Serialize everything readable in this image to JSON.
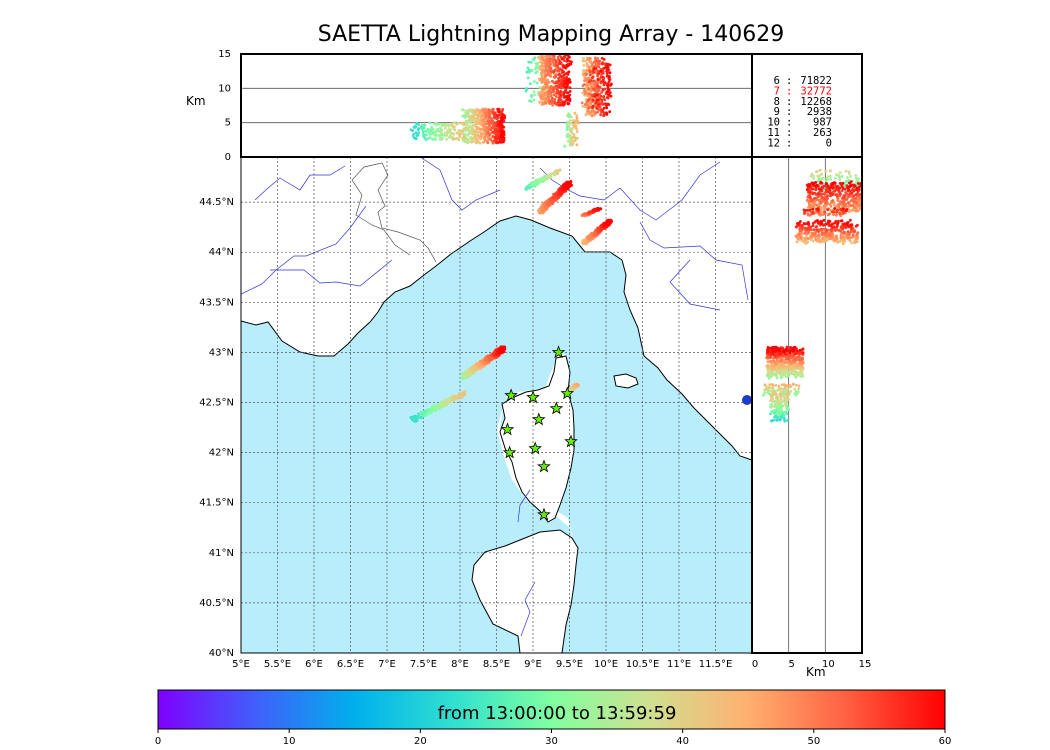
{
  "title": "SAETTA Lightning Mapping Array - 140629",
  "km_label": "Km",
  "plan_view": {
    "lon_ticks": [
      "5°E",
      "5.5°E",
      "6°E",
      "6.5°E",
      "7°E",
      "7.5°E",
      "8°E",
      "8.5°E",
      "9°E",
      "9.5°E",
      "10°E",
      "10.5°E",
      "11°E",
      "11.5°E"
    ],
    "lat_ticks": [
      "40°N",
      "40.5°N",
      "41°N",
      "41.5°N",
      "42°N",
      "42.5°N",
      "43°N",
      "43.5°N",
      "44°N",
      "44.5°N"
    ],
    "lon_range": [
      5,
      12
    ],
    "lat_range": [
      40,
      44.95
    ],
    "sea_color": "#b8eefc",
    "station_color": "#66ee00",
    "stations": [
      {
        "lon": 9.35,
        "lat": 43.0
      },
      {
        "lon": 8.7,
        "lat": 42.57
      },
      {
        "lon": 9.0,
        "lat": 42.55
      },
      {
        "lon": 9.47,
        "lat": 42.59
      },
      {
        "lon": 9.32,
        "lat": 42.44
      },
      {
        "lon": 9.08,
        "lat": 42.33
      },
      {
        "lon": 8.65,
        "lat": 42.23
      },
      {
        "lon": 9.52,
        "lat": 42.11
      },
      {
        "lon": 9.03,
        "lat": 42.04
      },
      {
        "lon": 8.68,
        "lat": 42.0
      },
      {
        "lon": 9.15,
        "lat": 41.86
      },
      {
        "lon": 9.15,
        "lat": 41.38
      }
    ]
  },
  "altitude_axis": {
    "ticks": [
      "0",
      "5",
      "10",
      "15"
    ],
    "range": [
      0,
      15
    ],
    "grid_lines": [
      5,
      10
    ]
  },
  "source_counts": [
    {
      "label": "6",
      "sep": ":",
      "count": "71822",
      "color": "#000000"
    },
    {
      "label": "7",
      "sep": ":",
      "count": "32772",
      "color": "#ff0000"
    },
    {
      "label": "8",
      "sep": ":",
      "count": "12268",
      "color": "#000000"
    },
    {
      "label": "9",
      "sep": ":",
      "count": "2938",
      "color": "#000000"
    },
    {
      "label": "10",
      "sep": ":",
      "count": "987",
      "color": "#000000"
    },
    {
      "label": "11",
      "sep": ":",
      "count": "263",
      "color": "#000000"
    },
    {
      "label": "12",
      "sep": ":",
      "count": "0",
      "color": "#000000"
    }
  ],
  "colorbar": {
    "label": "from 13:00:00 to 13:59:59",
    "ticks": [
      "0",
      "10",
      "20",
      "30",
      "40",
      "50",
      "60"
    ],
    "range": [
      0,
      60
    ],
    "colors": [
      "#8000ff",
      "#4060fa",
      "#00b0ec",
      "#30e0d0",
      "#80ffa0",
      "#d0e090",
      "#ffb070",
      "#ff6040",
      "#ff0000"
    ]
  },
  "lightning_clusters": [
    {
      "lon_range": [
        7.35,
        8.05
      ],
      "lat_range": [
        42.27,
        42.65
      ],
      "t_range": [
        22,
        42
      ],
      "alt_range": [
        2.5,
        5.0
      ],
      "n": 160
    },
    {
      "lon_range": [
        8.05,
        8.6
      ],
      "lat_range": [
        42.7,
        43.1
      ],
      "t_range": [
        32,
        60
      ],
      "alt_range": [
        2.0,
        7.0
      ],
      "n": 520
    },
    {
      "lon_range": [
        9.45,
        9.6
      ],
      "lat_range": [
        42.55,
        42.7
      ],
      "t_range": [
        28,
        45
      ],
      "alt_range": [
        1.5,
        6.5
      ],
      "n": 80
    },
    {
      "lon_range": [
        8.9,
        9.35
      ],
      "lat_range": [
        44.6,
        44.85
      ],
      "t_range": [
        25,
        40
      ],
      "alt_range": [
        8.0,
        14.5
      ],
      "n": 80
    },
    {
      "lon_range": [
        9.1,
        9.5
      ],
      "lat_range": [
        44.35,
        44.75
      ],
      "t_range": [
        45,
        60
      ],
      "alt_range": [
        7.5,
        14.9
      ],
      "n": 420
    },
    {
      "lon_range": [
        9.7,
        10.05
      ],
      "lat_range": [
        44.05,
        44.35
      ],
      "t_range": [
        42,
        60
      ],
      "alt_range": [
        6.0,
        14.5
      ],
      "n": 360
    },
    {
      "lon_range": [
        9.7,
        9.9
      ],
      "lat_range": [
        44.35,
        44.45
      ],
      "t_range": [
        48,
        60
      ],
      "alt_range": [
        7.0,
        13.0
      ],
      "n": 60
    }
  ]
}
